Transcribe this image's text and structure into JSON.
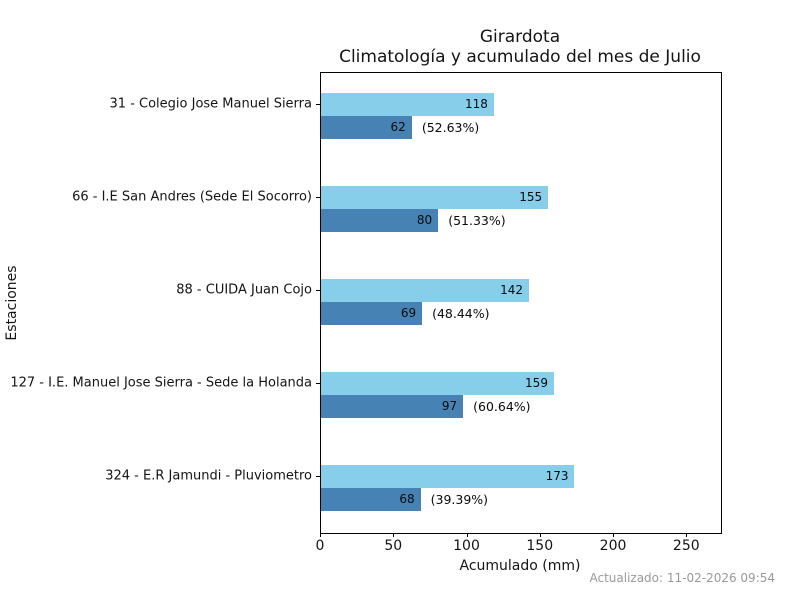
{
  "chart_data": {
    "type": "bar",
    "orientation": "horizontal",
    "title": "Girardota",
    "subtitle": "Climatología y acumulado del mes de Julio",
    "xlabel": "Acumulado (mm)",
    "ylabel": "Estaciones",
    "categories": [
      "31 - Colegio Jose Manuel Sierra",
      "66 - I.E San Andres (Sede El Socorro)",
      "88 - CUIDA Juan Cojo",
      "127 - I.E. Manuel Jose Sierra - Sede la Holanda",
      "324 - E.R Jamundi - Pluviometro"
    ],
    "series": [
      {
        "name": "Climatología",
        "color": "#87CEEB",
        "values": [
          118,
          155,
          142,
          159,
          173
        ]
      },
      {
        "name": "Acumulado del mes",
        "color": "#4682B4",
        "values": [
          62,
          80,
          69,
          97,
          68
        ]
      }
    ],
    "percent_labels": [
      "(52.63%)",
      "(51.33%)",
      "(48.44%)",
      "(60.64%)",
      "(39.39%)"
    ],
    "x_ticks": [
      0,
      50,
      100,
      150,
      200,
      250
    ],
    "xlim": [
      0,
      273
    ],
    "grid": false,
    "legend": "none",
    "footer": "Actualizado: 11-02-2026 09:54"
  },
  "colors": {
    "bar_climatologia": "#87CEEB",
    "bar_acumulado": "#4682B4",
    "footer_text": "#999999",
    "axis_text": "#141414"
  }
}
